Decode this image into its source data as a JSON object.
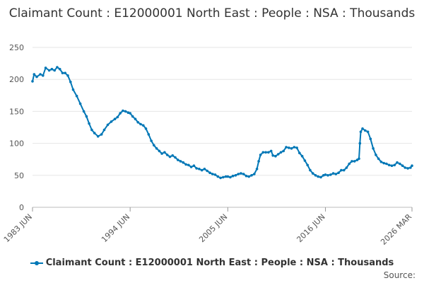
{
  "chart_data": {
    "type": "line",
    "title": "Claimant Count : E12000001 North East : People : NSA : Thousands",
    "ylim": [
      0,
      250
    ],
    "y_ticks": [
      0,
      50,
      100,
      150,
      200,
      250
    ],
    "x_ticks": [
      "1983 JUN",
      "1994 JUN",
      "2005 JUN",
      "2016 JUN",
      "2026 MAR"
    ],
    "grid": "horizontal",
    "legend": "bottom",
    "series": [
      {
        "name": "Claimant Count : E12000001 North East : People : NSA : Thousands",
        "color": "#0077b6",
        "points": [
          [
            1983.42,
            197
          ],
          [
            1983.6,
            208
          ],
          [
            1983.9,
            204
          ],
          [
            1984.3,
            208
          ],
          [
            1984.6,
            206
          ],
          [
            1984.9,
            218
          ],
          [
            1985.3,
            214
          ],
          [
            1985.6,
            216
          ],
          [
            1985.9,
            214
          ],
          [
            1986.2,
            219
          ],
          [
            1986.5,
            216
          ],
          [
            1986.8,
            210
          ],
          [
            1987.1,
            210
          ],
          [
            1987.4,
            206
          ],
          [
            1987.7,
            196
          ],
          [
            1988.0,
            184
          ],
          [
            1988.4,
            174
          ],
          [
            1988.8,
            162
          ],
          [
            1989.2,
            150
          ],
          [
            1989.5,
            142
          ],
          [
            1989.8,
            131
          ],
          [
            1990.1,
            121
          ],
          [
            1990.4,
            116
          ],
          [
            1990.8,
            111
          ],
          [
            1991.2,
            114
          ],
          [
            1991.5,
            121
          ],
          [
            1991.9,
            129
          ],
          [
            1992.3,
            134
          ],
          [
            1992.7,
            138
          ],
          [
            1993.0,
            141
          ],
          [
            1993.3,
            147
          ],
          [
            1993.6,
            151
          ],
          [
            1993.9,
            150
          ],
          [
            1994.2,
            148
          ],
          [
            1994.42,
            147
          ],
          [
            1994.7,
            142
          ],
          [
            1995.0,
            138
          ],
          [
            1995.3,
            133
          ],
          [
            1995.6,
            130
          ],
          [
            1995.9,
            128
          ],
          [
            1996.2,
            123
          ],
          [
            1996.5,
            114
          ],
          [
            1996.8,
            104
          ],
          [
            1997.1,
            97
          ],
          [
            1997.4,
            92
          ],
          [
            1997.7,
            88
          ],
          [
            1998.0,
            84
          ],
          [
            1998.3,
            86
          ],
          [
            1998.6,
            82
          ],
          [
            1998.9,
            79
          ],
          [
            1999.2,
            81
          ],
          [
            1999.5,
            78
          ],
          [
            1999.8,
            74
          ],
          [
            2000.1,
            72
          ],
          [
            2000.4,
            70
          ],
          [
            2000.7,
            67
          ],
          [
            2001.0,
            66
          ],
          [
            2001.3,
            63
          ],
          [
            2001.6,
            65
          ],
          [
            2001.9,
            61
          ],
          [
            2002.2,
            60
          ],
          [
            2002.5,
            58
          ],
          [
            2002.8,
            60
          ],
          [
            2003.1,
            57
          ],
          [
            2003.4,
            54
          ],
          [
            2003.7,
            52
          ],
          [
            2004.0,
            51
          ],
          [
            2004.3,
            48
          ],
          [
            2004.6,
            46
          ],
          [
            2004.9,
            47
          ],
          [
            2005.2,
            48
          ],
          [
            2005.42,
            48
          ],
          [
            2005.7,
            47
          ],
          [
            2006.0,
            49
          ],
          [
            2006.3,
            50
          ],
          [
            2006.6,
            52
          ],
          [
            2006.9,
            53
          ],
          [
            2007.2,
            52
          ],
          [
            2007.5,
            49
          ],
          [
            2007.8,
            48
          ],
          [
            2008.1,
            50
          ],
          [
            2008.4,
            52
          ],
          [
            2008.7,
            60
          ],
          [
            2008.9,
            72
          ],
          [
            2009.1,
            82
          ],
          [
            2009.4,
            86
          ],
          [
            2009.7,
            86
          ],
          [
            2010.0,
            86
          ],
          [
            2010.3,
            88
          ],
          [
            2010.5,
            81
          ],
          [
            2010.8,
            80
          ],
          [
            2011.1,
            83
          ],
          [
            2011.4,
            86
          ],
          [
            2011.7,
            88
          ],
          [
            2012.0,
            94
          ],
          [
            2012.3,
            93
          ],
          [
            2012.6,
            92
          ],
          [
            2012.9,
            94
          ],
          [
            2013.2,
            93
          ],
          [
            2013.5,
            85
          ],
          [
            2013.8,
            80
          ],
          [
            2014.1,
            73
          ],
          [
            2014.4,
            66
          ],
          [
            2014.7,
            58
          ],
          [
            2015.0,
            53
          ],
          [
            2015.3,
            50
          ],
          [
            2015.6,
            48
          ],
          [
            2015.9,
            47
          ],
          [
            2016.2,
            50
          ],
          [
            2016.42,
            51
          ],
          [
            2016.7,
            50
          ],
          [
            2017.0,
            51
          ],
          [
            2017.3,
            53
          ],
          [
            2017.6,
            52
          ],
          [
            2017.9,
            54
          ],
          [
            2018.2,
            58
          ],
          [
            2018.5,
            58
          ],
          [
            2018.8,
            62
          ],
          [
            2019.1,
            68
          ],
          [
            2019.4,
            72
          ],
          [
            2019.7,
            72
          ],
          [
            2020.0,
            74
          ],
          [
            2020.2,
            76
          ],
          [
            2020.3,
            100
          ],
          [
            2020.4,
            118
          ],
          [
            2020.6,
            123
          ],
          [
            2020.9,
            120
          ],
          [
            2021.2,
            118
          ],
          [
            2021.5,
            107
          ],
          [
            2021.8,
            92
          ],
          [
            2022.1,
            82
          ],
          [
            2022.4,
            76
          ],
          [
            2022.7,
            71
          ],
          [
            2023.0,
            69
          ],
          [
            2023.3,
            68
          ],
          [
            2023.6,
            66
          ],
          [
            2023.9,
            65
          ],
          [
            2024.2,
            66
          ],
          [
            2024.5,
            70
          ],
          [
            2024.8,
            68
          ],
          [
            2025.1,
            65
          ],
          [
            2025.4,
            62
          ],
          [
            2025.7,
            61
          ],
          [
            2026.0,
            62
          ],
          [
            2026.17,
            65
          ]
        ]
      }
    ]
  },
  "legend_label": "Claimant Count : E12000001 North East : People : NSA : Thousands",
  "source_label": "Source:"
}
